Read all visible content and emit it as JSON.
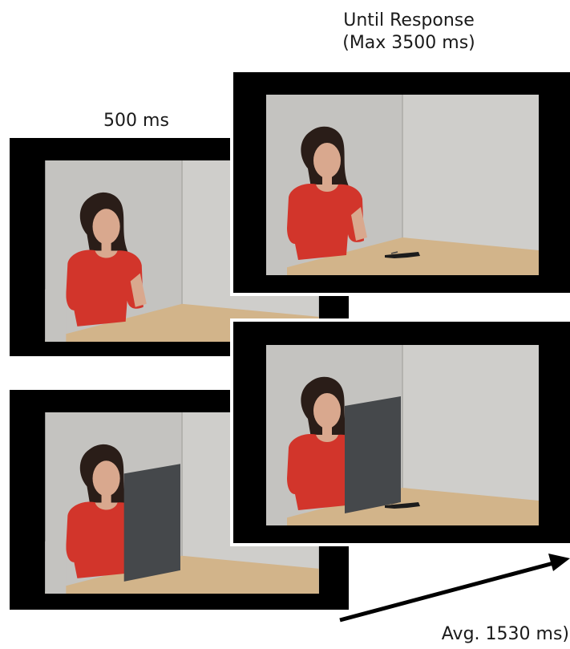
{
  "labels": {
    "until_response": "Until Response",
    "max_duration": "(Max 3500 ms)",
    "duration_500": "500 ms",
    "avg_duration": "Avg. 1530 ms)"
  },
  "colors": {
    "background": "#ffffff",
    "frame": "#000000",
    "back_wall": "#c4c3c0",
    "side_wall": "#cfcecb",
    "table": "#d2b48a",
    "shirt": "#d2352b",
    "hair": "#2a1d18",
    "skin": "#d9a88e",
    "occluder": "#45484b",
    "object": "#1c1c1c"
  },
  "frames": [
    {
      "name": "stimulus-500ms",
      "occluder": false,
      "object": false
    },
    {
      "name": "response-frame",
      "occluder": false,
      "object": true
    },
    {
      "name": "occluder-frame-left",
      "occluder": true,
      "object": false
    },
    {
      "name": "occluder-frame-right",
      "occluder": true,
      "object": true
    }
  ]
}
